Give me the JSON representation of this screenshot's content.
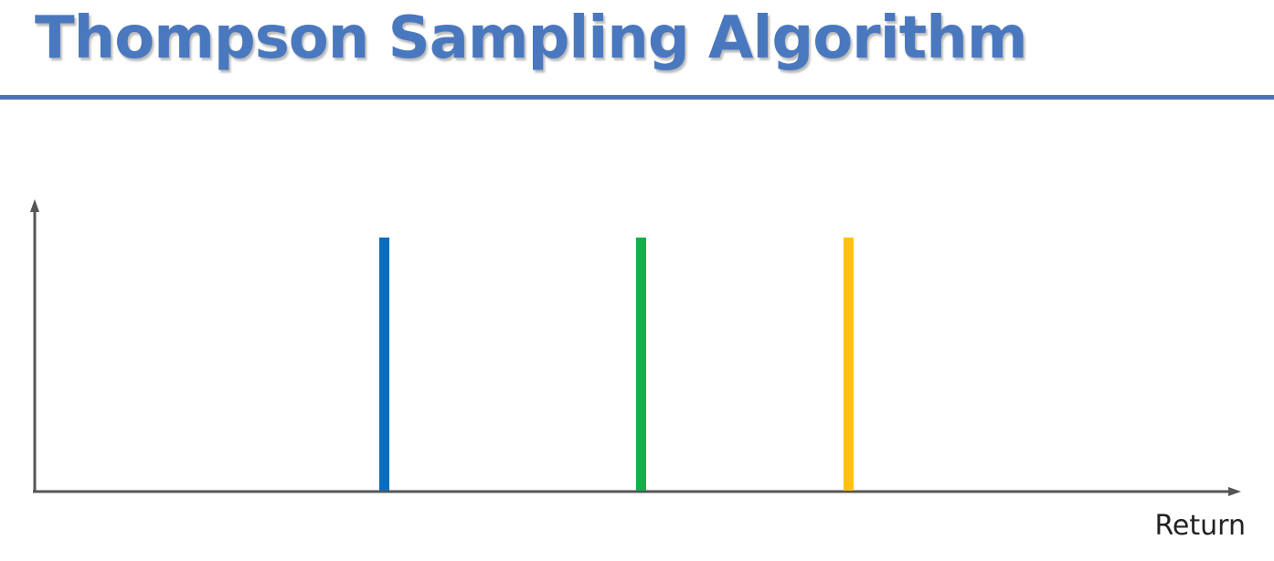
{
  "slide": {
    "title": "Thompson Sampling Algorithm"
  },
  "diagram": {
    "x_axis_label": "Return",
    "lines": [
      {
        "id": "blue",
        "color": "#0a6cc1"
      },
      {
        "id": "green",
        "color": "#12b04b"
      },
      {
        "id": "yellow",
        "color": "#ffc20e"
      }
    ],
    "axis_color": "#555555",
    "title_color": "#4a78bf",
    "rule_color": "#4a72b8"
  }
}
